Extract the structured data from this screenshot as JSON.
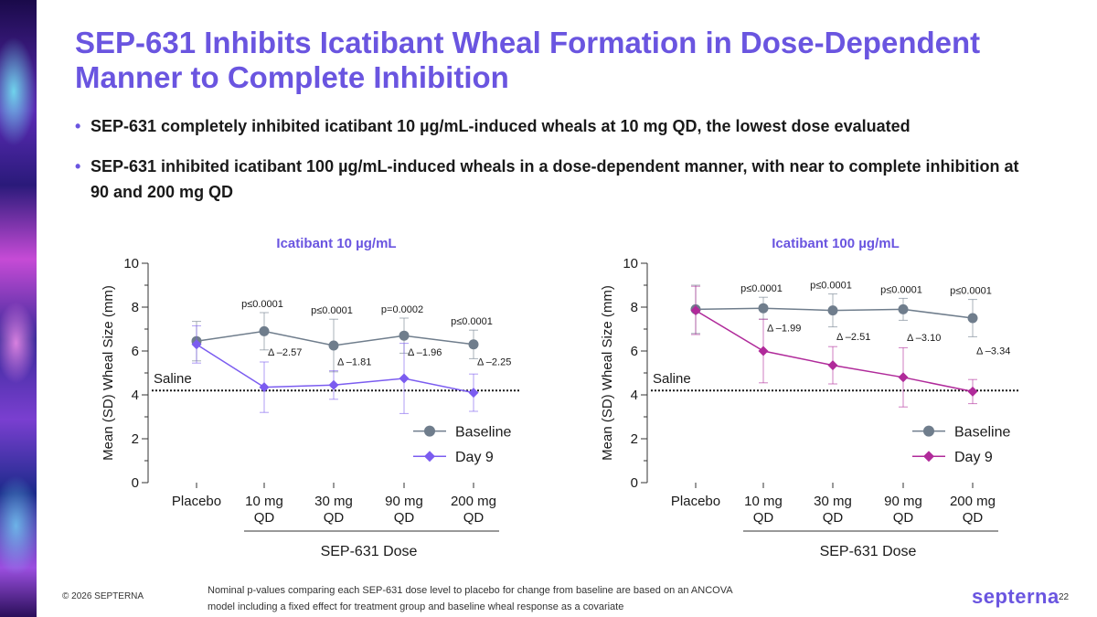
{
  "slide": {
    "title": "SEP-631 Inhibits Icatibant Wheal Formation in Dose-Dependent Manner to Complete Inhibition",
    "bullets": [
      "SEP-631 completely inhibited icatibant 10 µg/mL-induced wheals at 10 mg QD, the lowest dose evaluated",
      "SEP-631 inhibited icatibant 100 µg/mL-induced wheals in a dose-dependent manner, with near to complete inhibition at 90 and 200 mg QD"
    ],
    "footnote": "Nominal p-values comparing each SEP-631 dose level to placebo for change from baseline are based on an ANCOVA model including a fixed effect for treatment group and baseline wheal response as a covariate",
    "copyright": "© 2026 SEPTERNA",
    "logo": "septerna",
    "page_number": "22"
  },
  "colors": {
    "accent": "#6a55e0",
    "baseline": "#6f7d8c",
    "day9_left": "#7b5cf0",
    "day9_right": "#b02a9a"
  },
  "chart_data": [
    {
      "type": "line",
      "title": "Icatibant 10 µg/mL",
      "xlabel": "SEP-631 Dose",
      "ylabel": "Mean (SD) Wheal Size (mm)",
      "ylim": [
        0,
        10
      ],
      "yticks": [
        "0",
        "2",
        "4",
        "6",
        "8",
        "10"
      ],
      "categories": [
        [
          "Placebo"
        ],
        [
          "10 mg",
          "QD"
        ],
        [
          "30 mg",
          "QD"
        ],
        [
          "90 mg",
          "QD"
        ],
        [
          "200 mg",
          "QD"
        ]
      ],
      "saline": {
        "label": "Saline",
        "value": 4.2
      },
      "series": [
        {
          "name": "Baseline",
          "marker": "circle",
          "values": [
            6.45,
            6.9,
            6.25,
            6.7,
            6.3
          ],
          "sd": [
            0.9,
            0.85,
            1.2,
            0.8,
            0.65
          ]
        },
        {
          "name": "Day 9",
          "marker": "diamond",
          "values": [
            6.3,
            4.35,
            4.45,
            4.75,
            4.1
          ],
          "sd": [
            0.85,
            1.15,
            0.65,
            1.6,
            0.85
          ]
        }
      ],
      "pvalues": [
        "p≤0.0001",
        "p≤0.0001",
        "p=0.0002",
        "p≤0.0001"
      ],
      "deltas": [
        {
          "label": "Δ –2.57",
          "index": 1,
          "y": 5.8
        },
        {
          "label": "Δ –1.81",
          "index": 2,
          "y": 5.35
        },
        {
          "label": "Δ –1.96",
          "index": 3,
          "y": 5.8
        },
        {
          "label": "Δ –2.25",
          "index": 4,
          "y": 5.35
        }
      ],
      "legend": [
        "Baseline",
        "Day 9"
      ]
    },
    {
      "type": "line",
      "title": "Icatibant 100 µg/mL",
      "xlabel": "SEP-631 Dose",
      "ylabel": "Mean (SD) Wheal Size (mm)",
      "ylim": [
        0,
        10
      ],
      "yticks": [
        "0",
        "2",
        "4",
        "6",
        "8",
        "10"
      ],
      "categories": [
        [
          "Placebo"
        ],
        [
          "10 mg",
          "QD"
        ],
        [
          "30 mg",
          "QD"
        ],
        [
          "90 mg",
          "QD"
        ],
        [
          "200 mg",
          "QD"
        ]
      ],
      "saline": {
        "label": "Saline",
        "value": 4.2
      },
      "series": [
        {
          "name": "Baseline",
          "marker": "circle",
          "values": [
            7.9,
            7.95,
            7.85,
            7.9,
            7.5
          ],
          "sd": [
            1.1,
            0.5,
            0.75,
            0.5,
            0.85
          ]
        },
        {
          "name": "Day 9",
          "marker": "diamond",
          "values": [
            7.85,
            6.0,
            5.35,
            4.8,
            4.15
          ],
          "sd": [
            1.1,
            1.45,
            0.85,
            1.35,
            0.55
          ]
        }
      ],
      "pvalues": [
        "p≤0.0001",
        "p≤0.0001",
        "p≤0.0001",
        "p≤0.0001"
      ],
      "deltas": [
        {
          "label": "Δ –1.99",
          "index": 1,
          "y": 6.9
        },
        {
          "label": "Δ –2.51",
          "index": 2,
          "y": 6.5
        },
        {
          "label": "Δ –3.10",
          "index": 3,
          "y": 6.45
        },
        {
          "label": "Δ –3.34",
          "index": 4,
          "y": 5.85
        }
      ],
      "legend": [
        "Baseline",
        "Day 9"
      ]
    }
  ]
}
